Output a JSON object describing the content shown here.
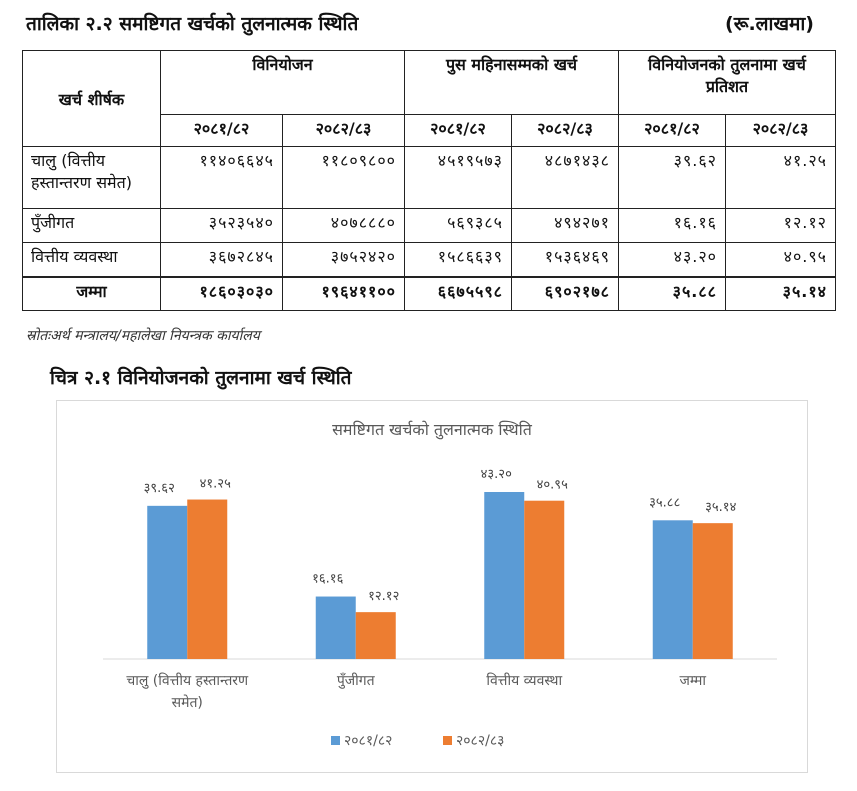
{
  "table": {
    "title": "तालिका २.२ समष्टिगत खर्चको तुलनात्मक स्थिति",
    "unit": "(रू.लाखमा)",
    "header": {
      "row_label": "खर्च शीर्षक",
      "groups": [
        "विनियोजन",
        "पुस महिनासम्मको खर्च",
        "विनियोजनको तुलनामा खर्च प्रतिशत"
      ],
      "years": [
        "२०८१/८२",
        "२०८२/८३",
        "२०८१/८२",
        "२०८२/८३",
        "२०८१/८२",
        "२०८२/८३"
      ]
    },
    "rows": [
      {
        "label": "चालु (वित्तीय हस्तान्तरण समेत)",
        "values": [
          "११४०६६४५",
          "११८०९८००",
          "४५१९५७३",
          "४८७१४३८",
          "३९.६२",
          "४१.२५"
        ]
      },
      {
        "label": "पुँजीगत",
        "values": [
          "३५२३५४०",
          "४०७८८८०",
          "५६९३८५",
          "४९४२७१",
          "१६.१६",
          "१२.१२"
        ]
      },
      {
        "label": "वित्तीय व्यवस्था",
        "values": [
          "३६७२८४५",
          "३७५२४२०",
          "१५८६६३९",
          "१५३६४६९",
          "४३.२०",
          "४०.९५"
        ]
      },
      {
        "label": "जम्मा",
        "values": [
          "१८६०३०३०",
          "१९६४११००",
          "६६७५५९८",
          "६९०२१७८",
          "३५.८८",
          "३५.१४"
        ]
      }
    ],
    "source": "स्रोतःअर्थ मन्त्रालय/महालेखा नियन्त्रक कार्यालय"
  },
  "figure": {
    "title": "चित्र २.१ विनियोजनको तुलनामा खर्च स्थिति"
  },
  "chart_data": {
    "type": "bar",
    "title": "समष्टिगत खर्चको तुलनात्मक स्थिति",
    "categories": [
      [
        "चालु (वित्तीय हस्तान्तरण",
        "समेत)"
      ],
      [
        "पुँजीगत"
      ],
      [
        "वित्तीय व्यवस्था"
      ],
      [
        "जम्मा"
      ]
    ],
    "series": [
      {
        "name": "२०८१/८२",
        "color": "#5b9bd5",
        "values": [
          39.62,
          16.16,
          43.2,
          35.88
        ],
        "labels": [
          "३९.६२",
          "१६.१६",
          "४३.२०",
          "३५.८८"
        ]
      },
      {
        "name": "२०८२/८३",
        "color": "#ed7d31",
        "values": [
          41.25,
          12.12,
          40.95,
          35.14
        ],
        "labels": [
          "४१.२५",
          "१२.१२",
          "४०.९५",
          "३५.१४"
        ]
      }
    ],
    "ylim": [
      0,
      50
    ],
    "legend": "bottom",
    "grid": false
  }
}
